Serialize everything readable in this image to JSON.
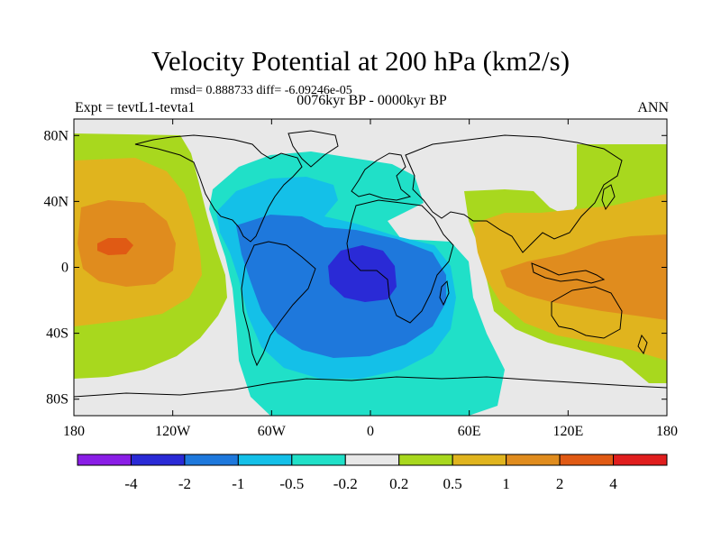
{
  "figure": {
    "title": "Velocity Potential at 200 hPa (km2/s)",
    "stats": "rmsd= 0.888733  diff= -6.09246e-05",
    "left_label": "Expt = tevtL1-tevta1",
    "center_label": "0076kyr BP - 0000kyr BP",
    "right_label": "ANN"
  },
  "map": {
    "projection": "cylindrical-equidistant",
    "lon_range": [
      -180,
      180
    ],
    "lat_range": [
      -90,
      90
    ],
    "lon_ticks": [
      "180",
      "120W",
      "60W",
      "0",
      "60E",
      "120E",
      "180"
    ],
    "lat_ticks": [
      "80N",
      "40N",
      "0",
      "40S",
      "80S"
    ],
    "land_outline_color": "#000000",
    "background_color": "#e8e8e8"
  },
  "colorbar": {
    "labels": [
      "-4",
      "-2",
      "-1",
      "-0.5",
      "-0.2",
      "0.2",
      "0.5",
      "1",
      "2",
      "4"
    ],
    "colors": [
      "#8a1ee6",
      "#2a2ad6",
      "#1e78dc",
      "#14c0e8",
      "#20e0c8",
      "#e8e8e8",
      "#a8d81e",
      "#e0b41e",
      "#e08c1e",
      "#e05a14",
      "#e01e1e"
    ]
  },
  "field_colors": {
    "neg4": "#2a2ad6",
    "neg2": "#1e78dc",
    "neg1": "#14c0e8",
    "neg05": "#20e0c8",
    "pos02": "#a8d81e",
    "pos05": "#e0b41e",
    "pos1": "#e08c1e",
    "pos2": "#e05a14",
    "pos4": "#e01e1e"
  }
}
